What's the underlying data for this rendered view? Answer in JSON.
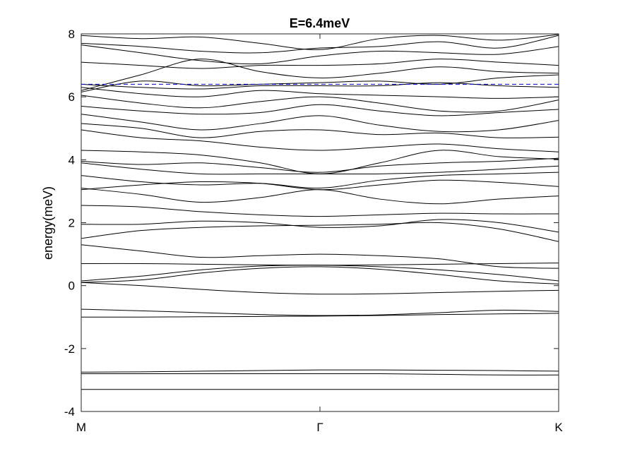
{
  "chart_data": {
    "type": "line",
    "title": "E=6.4meV",
    "xlabel": "",
    "ylabel": "energy(meV)",
    "ylim": [
      -4,
      8
    ],
    "xlim": [
      0,
      2
    ],
    "yticks": [
      "-4",
      "-2",
      "0",
      "2",
      "4",
      "6",
      "8"
    ],
    "yticks_values": [
      -4,
      -2,
      0,
      2,
      4,
      6,
      8
    ],
    "xticks": [
      "M",
      "Γ",
      "K"
    ],
    "xticks_values": [
      0,
      1,
      2
    ],
    "grid": false,
    "line_color": "#000000",
    "reference_line": {
      "y": 6.4,
      "color": "#0000cc",
      "style": "dashed"
    },
    "x": [
      0,
      0.25,
      0.5,
      0.75,
      1,
      1.25,
      1.5,
      1.75,
      2
    ],
    "series": [
      {
        "values": [
          -3.3,
          -3.3,
          -3.3,
          -3.3,
          -3.3,
          -3.3,
          -3.3,
          -3.3,
          -3.3
        ]
      },
      {
        "values": [
          -2.8,
          -2.8,
          -2.8,
          -2.8,
          -2.8,
          -2.8,
          -2.82,
          -2.84,
          -2.84
        ]
      },
      {
        "values": [
          -2.75,
          -2.74,
          -2.72,
          -2.7,
          -2.68,
          -2.68,
          -2.69,
          -2.7,
          -2.72
        ]
      },
      {
        "values": [
          -1.0,
          -1.0,
          -0.99,
          -0.98,
          -0.97,
          -0.95,
          -0.92,
          -0.9,
          -0.88
        ]
      },
      {
        "values": [
          -0.75,
          -0.8,
          -0.86,
          -0.92,
          -0.95,
          -0.93,
          -0.86,
          -0.78,
          -0.82
        ]
      },
      {
        "values": [
          0.1,
          0.0,
          -0.12,
          -0.22,
          -0.27,
          -0.26,
          -0.22,
          -0.18,
          -0.15
        ]
      },
      {
        "values": [
          0.1,
          0.18,
          0.4,
          0.55,
          0.6,
          0.52,
          0.35,
          0.15,
          0.05
        ]
      },
      {
        "values": [
          0.15,
          0.3,
          0.5,
          0.62,
          0.65,
          0.6,
          0.5,
          0.35,
          0.15
        ]
      },
      {
        "values": [
          0.7,
          0.7,
          0.68,
          0.66,
          0.65,
          0.66,
          0.68,
          0.7,
          0.72
        ]
      },
      {
        "values": [
          1.3,
          1.1,
          0.9,
          0.95,
          1.0,
          0.95,
          0.85,
          0.6,
          0.55
        ]
      },
      {
        "values": [
          1.5,
          1.75,
          1.85,
          1.9,
          1.92,
          1.95,
          2.0,
          1.8,
          1.4
        ]
      },
      {
        "values": [
          1.95,
          1.95,
          2.05,
          2.0,
          1.85,
          1.9,
          2.1,
          2.0,
          1.7
        ]
      },
      {
        "values": [
          2.55,
          2.5,
          2.35,
          2.25,
          2.2,
          2.25,
          2.3,
          2.28,
          2.28
        ]
      },
      {
        "values": [
          3.1,
          2.9,
          2.65,
          2.8,
          3.05,
          2.75,
          2.6,
          2.75,
          2.85
        ]
      },
      {
        "values": [
          3.05,
          3.2,
          3.3,
          3.25,
          3.05,
          3.2,
          3.35,
          3.28,
          3.15
        ]
      },
      {
        "values": [
          3.5,
          3.3,
          3.2,
          3.25,
          3.1,
          3.35,
          3.5,
          3.55,
          3.6
        ]
      },
      {
        "values": [
          3.9,
          3.7,
          3.55,
          3.55,
          3.55,
          3.55,
          3.6,
          3.7,
          3.8
        ]
      },
      {
        "values": [
          3.95,
          3.85,
          3.9,
          3.75,
          3.6,
          3.8,
          3.9,
          3.95,
          4.05
        ]
      },
      {
        "values": [
          4.3,
          4.25,
          4.15,
          3.9,
          3.55,
          3.9,
          4.3,
          4.1,
          4.02
        ]
      },
      {
        "values": [
          4.95,
          4.7,
          4.6,
          4.4,
          4.3,
          4.4,
          4.5,
          4.35,
          4.25
        ]
      },
      {
        "values": [
          5.15,
          5.0,
          4.7,
          4.9,
          4.95,
          4.8,
          4.85,
          4.7,
          4.72
        ]
      },
      {
        "values": [
          5.45,
          5.2,
          4.95,
          5.15,
          5.4,
          5.1,
          4.9,
          4.95,
          5.25
        ]
      },
      {
        "values": [
          5.7,
          5.55,
          5.45,
          5.5,
          5.75,
          5.55,
          5.4,
          5.5,
          5.6
        ]
      },
      {
        "values": [
          6.05,
          5.8,
          5.65,
          5.85,
          6.0,
          5.8,
          5.55,
          5.55,
          5.9
        ]
      },
      {
        "values": [
          6.3,
          6.1,
          6.0,
          6.2,
          6.1,
          6.05,
          6.0,
          5.95,
          6.0
        ]
      },
      {
        "values": [
          6.4,
          6.3,
          6.25,
          6.35,
          6.35,
          6.35,
          6.45,
          6.35,
          6.3
        ]
      },
      {
        "values": [
          6.15,
          6.5,
          6.35,
          6.4,
          6.45,
          6.5,
          6.4,
          6.6,
          6.7
        ]
      },
      {
        "values": [
          6.2,
          6.7,
          7.2,
          6.8,
          6.6,
          6.75,
          6.95,
          6.8,
          6.75
        ]
      },
      {
        "values": [
          7.1,
          7.0,
          6.9,
          7.0,
          7.0,
          7.05,
          7.2,
          7.1,
          7.0
        ]
      },
      {
        "values": [
          7.65,
          7.4,
          7.15,
          7.05,
          7.3,
          7.45,
          7.4,
          7.35,
          7.6
        ]
      },
      {
        "values": [
          7.7,
          7.6,
          7.45,
          7.4,
          7.55,
          7.6,
          7.75,
          7.55,
          7.95
        ]
      },
      {
        "values": [
          7.95,
          7.85,
          7.9,
          7.7,
          7.5,
          7.85,
          7.95,
          7.8,
          7.98
        ]
      }
    ]
  }
}
